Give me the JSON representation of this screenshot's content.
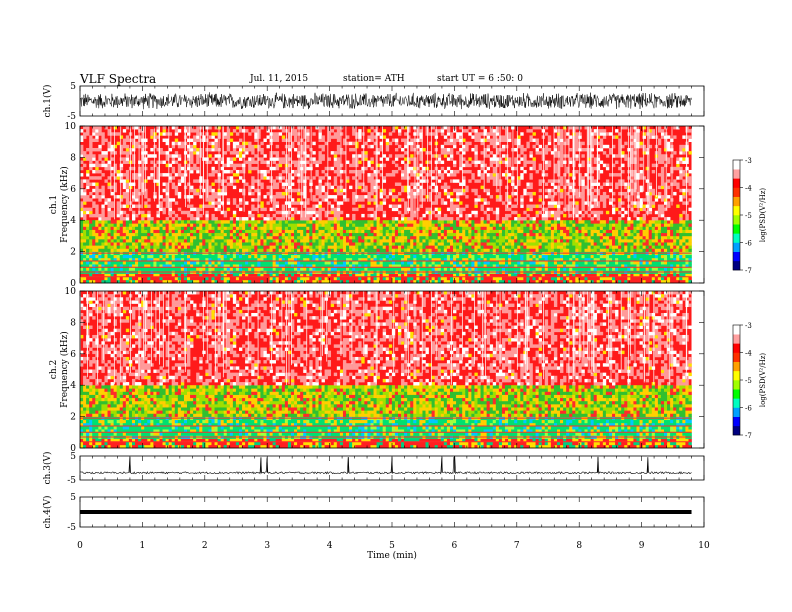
{
  "header": {
    "title": "VLF  Spectra",
    "date": "Jul.  11,  2015",
    "station": "station= ATH",
    "start": "start  UT  =   6  :50: 0"
  },
  "colorbar": {
    "label": "log(PSD(V²/Hz)",
    "ticks": [
      "-3",
      "-4",
      "-5",
      "-6",
      "-7"
    ],
    "colors": [
      "#000080",
      "#0000ff",
      "#00a0ff",
      "#00ffc0",
      "#00ff00",
      "#a0ff00",
      "#ffff00",
      "#ffa000",
      "#ff3000",
      "#ff0000",
      "#ffa0a0",
      "#ffffff"
    ]
  },
  "chart_data": [
    {
      "type": "line",
      "panel": "ch.1",
      "ylabel": "ch.1(V)",
      "ylim": [
        -5,
        5
      ],
      "yticks": [
        "5",
        "-5"
      ],
      "description_values": {
        "amplitude_range": [
          -3,
          3
        ]
      }
    },
    {
      "type": "heatmap",
      "panel": "ch.1 spectrogram",
      "ylabel_lines": [
        "ch.1",
        "Frequency  (kHz)"
      ],
      "ylim": [
        0,
        10
      ],
      "yticks": [
        "0",
        "2",
        "4",
        "6",
        "8",
        "10"
      ],
      "color_range": [
        -7,
        -3
      ],
      "bands_khz": {
        "green_band": [
          0.5,
          2.0
        ],
        "green_yellow_band": [
          2.0,
          4.0
        ],
        "red_upper": [
          4.0,
          10.0
        ]
      },
      "data_end_min": 9.8
    },
    {
      "type": "heatmap",
      "panel": "ch.2 spectrogram",
      "ylabel_lines": [
        "ch.2",
        "Frequency  (kHz)"
      ],
      "ylim": [
        0,
        10
      ],
      "yticks": [
        "0",
        "2",
        "4",
        "6",
        "8",
        "10"
      ],
      "color_range": [
        -7,
        -3
      ],
      "bands_khz": {
        "green_band": [
          0.5,
          2.0
        ],
        "green_yellow_band": [
          2.0,
          4.0
        ],
        "red_upper": [
          4.0,
          10.0
        ]
      },
      "data_end_min": 9.8
    },
    {
      "type": "line",
      "panel": "ch.3",
      "ylabel": "ch.3(V)",
      "ylim": [
        -5,
        5
      ],
      "yticks": [
        "5",
        "-5"
      ],
      "spikes_min": [
        0.8,
        2.9,
        3.0,
        4.3,
        5.0,
        5.8,
        6.0,
        8.3,
        9.1
      ]
    },
    {
      "type": "line",
      "panel": "ch.4",
      "ylabel": "ch.4(V)",
      "ylim": [
        -5,
        5
      ],
      "yticks": [
        "5",
        "-5"
      ],
      "constant_value": 0
    }
  ],
  "xaxis": {
    "label": "Time  (min)",
    "ticks": [
      "0",
      "1",
      "2",
      "3",
      "4",
      "5",
      "6",
      "7",
      "8",
      "9",
      "10"
    ],
    "xlim": [
      0,
      10
    ]
  }
}
